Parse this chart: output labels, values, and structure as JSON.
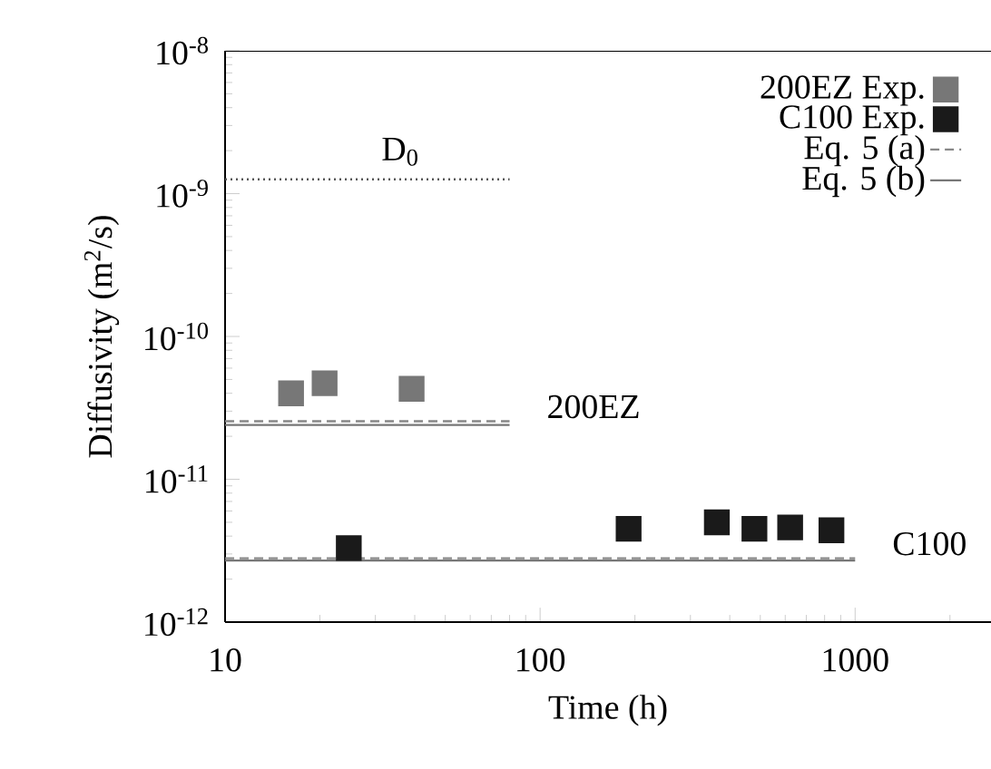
{
  "chart_data": {
    "type": "scatter",
    "xlabel": "Time (h)",
    "ylabel": "Diffusivity (m$^{2}$/s)",
    "log": "xy",
    "xlim": [
      10,
      2700
    ],
    "ylim": [
      1e-12,
      1e-08
    ],
    "xticks": [
      10,
      100,
      1000
    ],
    "yticks": [
      {
        "value": 1e-12,
        "label": "10$^{-12}$"
      },
      {
        "value": 1e-11,
        "label": "10$^{-11}$"
      },
      {
        "value": 1e-10,
        "label": "10$^{-10}$"
      },
      {
        "value": 1e-09,
        "label": "10$^{-9}$"
      },
      {
        "value": 1e-08,
        "label": "10$^{-8}$"
      }
    ],
    "legend": "top right",
    "grid": false,
    "series": [
      {
        "name": "200EZ Exp.",
        "marker": "square",
        "color": "#777777",
        "x": [
          16.2,
          20.7,
          39.1
        ],
        "values": [
          4e-11,
          4.7e-11,
          4.3e-11
        ]
      },
      {
        "name": "C100 Exp.",
        "marker": "square",
        "color": "#1a1a1a",
        "x": [
          24.7,
          191,
          364,
          479,
          622,
          841
        ],
        "values": [
          3.3e-12,
          4.5e-12,
          5e-12,
          4.5e-12,
          4.6e-12,
          4.4e-12
        ]
      },
      {
        "name": "Eq. 5 (a)",
        "type": "line",
        "line_style": "dashed",
        "color": "#888888",
        "x": [
          10,
          80
        ],
        "values": [
          2.55e-11,
          2.55e-11
        ]
      },
      {
        "name": "Eq. 5 (b)",
        "type": "line",
        "line_style": "solid",
        "color": "#777777",
        "x": [
          10,
          80
        ],
        "values": [
          2.4e-11,
          2.4e-11
        ]
      },
      {
        "type": "line",
        "line_style": "dashed",
        "color": "#888888",
        "x": [
          10,
          1000
        ],
        "values": [
          2.8e-12,
          2.8e-12
        ]
      },
      {
        "type": "line",
        "line_style": "solid",
        "color": "#777777",
        "x": [
          10,
          1000
        ],
        "values": [
          2.7e-12,
          2.7e-12
        ]
      },
      {
        "type": "line",
        "line_style": "dotted",
        "color": "#555555",
        "x": [
          10,
          80
        ],
        "values": [
          1.26e-09,
          1.26e-09
        ]
      }
    ],
    "annotations": [
      {
        "text": "D$_{0}$",
        "x": 36,
        "y": 1.26e-09
      },
      {
        "text": "200EZ",
        "x": 80,
        "y": 2.55e-11
      },
      {
        "text": "C100",
        "x": 1000,
        "y": 2.8e-12
      }
    ]
  }
}
